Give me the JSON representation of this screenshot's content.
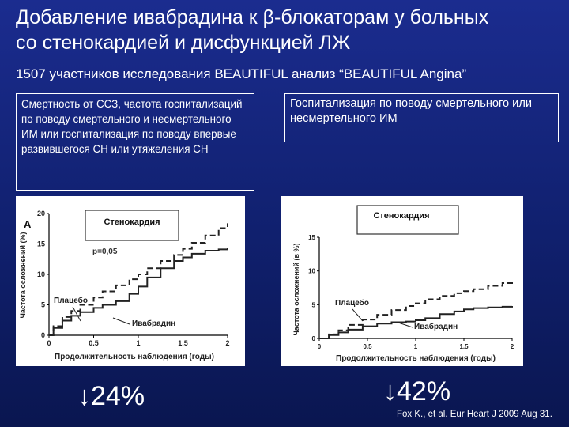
{
  "slide": {
    "title_line1": "Добавление ивабрадина к β-блокаторам у больных",
    "title_line2": "со стенокардией и дисфункцией ЛЖ",
    "subtitle": "1507 участников исследования BEAUTIFUL анализ “BEAUTIFUL Angina”",
    "box_left": "Смертность от ССЗ, частота госпитализаций по поводу смертельного и несмертельного ИМ или госпитализация по поводу впервые развившегося СН или утяжеления СН",
    "box_right": "Госпитализация по поводу смертельного или несмертельного  ИМ",
    "reduction_left": "↓24%",
    "reduction_right": "↓42%",
    "citation": "Fox K., et al. Eur Heart J 2009 Aug 31."
  },
  "chart_data": [
    {
      "type": "line",
      "panel_label": "A",
      "title": "Стенокардия",
      "annotation": "p=0,05",
      "xlabel": "Продолжительность наблюдения (годы)",
      "ylabel": "Частота осложнений (%)",
      "xlim": [
        0,
        2
      ],
      "ylim": [
        0,
        20
      ],
      "xticks": [
        "0",
        "0.5",
        "1",
        "1.5",
        "2"
      ],
      "yticks": [
        "0",
        "5",
        "10",
        "15",
        "20"
      ],
      "series": [
        {
          "name": "Плацебо",
          "style": "dashed",
          "x": [
            0,
            0.05,
            0.15,
            0.25,
            0.35,
            0.5,
            0.6,
            0.75,
            0.9,
            1.0,
            1.1,
            1.25,
            1.4,
            1.5,
            1.6,
            1.75,
            1.9,
            2.0
          ],
          "y": [
            0,
            1.5,
            3.0,
            4.0,
            5.0,
            6.2,
            7.2,
            8.2,
            9.2,
            10.0,
            11.0,
            12.2,
            13.2,
            14.2,
            15.2,
            16.4,
            17.6,
            18.4
          ]
        },
        {
          "name": "Ивабрадин",
          "style": "solid",
          "x": [
            0,
            0.05,
            0.15,
            0.25,
            0.35,
            0.5,
            0.6,
            0.75,
            0.9,
            1.0,
            1.1,
            1.25,
            1.4,
            1.5,
            1.6,
            1.75,
            1.9,
            2.0
          ],
          "y": [
            0,
            1.2,
            2.4,
            3.2,
            3.8,
            4.5,
            5.0,
            5.6,
            6.8,
            8.0,
            9.5,
            11.0,
            12.2,
            12.8,
            13.4,
            13.9,
            14.1,
            14.3
          ]
        }
      ]
    },
    {
      "type": "line",
      "title": "Стенокардия",
      "xlabel": "Продолжительность наблюдения (годы)",
      "ylabel": "Частота осложнений (в %)",
      "xlim": [
        0,
        2
      ],
      "ylim": [
        0,
        15
      ],
      "xticks": [
        "0",
        "0.5",
        "1",
        "1.5",
        "2"
      ],
      "yticks": [
        "0",
        "5",
        "10",
        "15"
      ],
      "series": [
        {
          "name": "Плацебо",
          "style": "dashed",
          "x": [
            0,
            0.1,
            0.2,
            0.3,
            0.45,
            0.6,
            0.75,
            0.9,
            1.0,
            1.1,
            1.25,
            1.4,
            1.5,
            1.6,
            1.75,
            1.9,
            2.0
          ],
          "y": [
            0,
            0.6,
            1.2,
            2.0,
            2.8,
            3.5,
            4.2,
            4.8,
            5.2,
            5.8,
            6.3,
            6.7,
            7.0,
            7.3,
            7.8,
            8.2,
            8.4
          ]
        },
        {
          "name": "Ивабрадин",
          "style": "solid",
          "x": [
            0,
            0.1,
            0.2,
            0.3,
            0.45,
            0.6,
            0.75,
            0.9,
            1.0,
            1.1,
            1.25,
            1.4,
            1.5,
            1.6,
            1.75,
            1.9,
            2.0
          ],
          "y": [
            0,
            0.5,
            0.9,
            1.3,
            1.8,
            2.2,
            2.4,
            2.5,
            2.7,
            3.0,
            3.6,
            4.0,
            4.3,
            4.5,
            4.6,
            4.7,
            4.8
          ]
        }
      ]
    }
  ]
}
